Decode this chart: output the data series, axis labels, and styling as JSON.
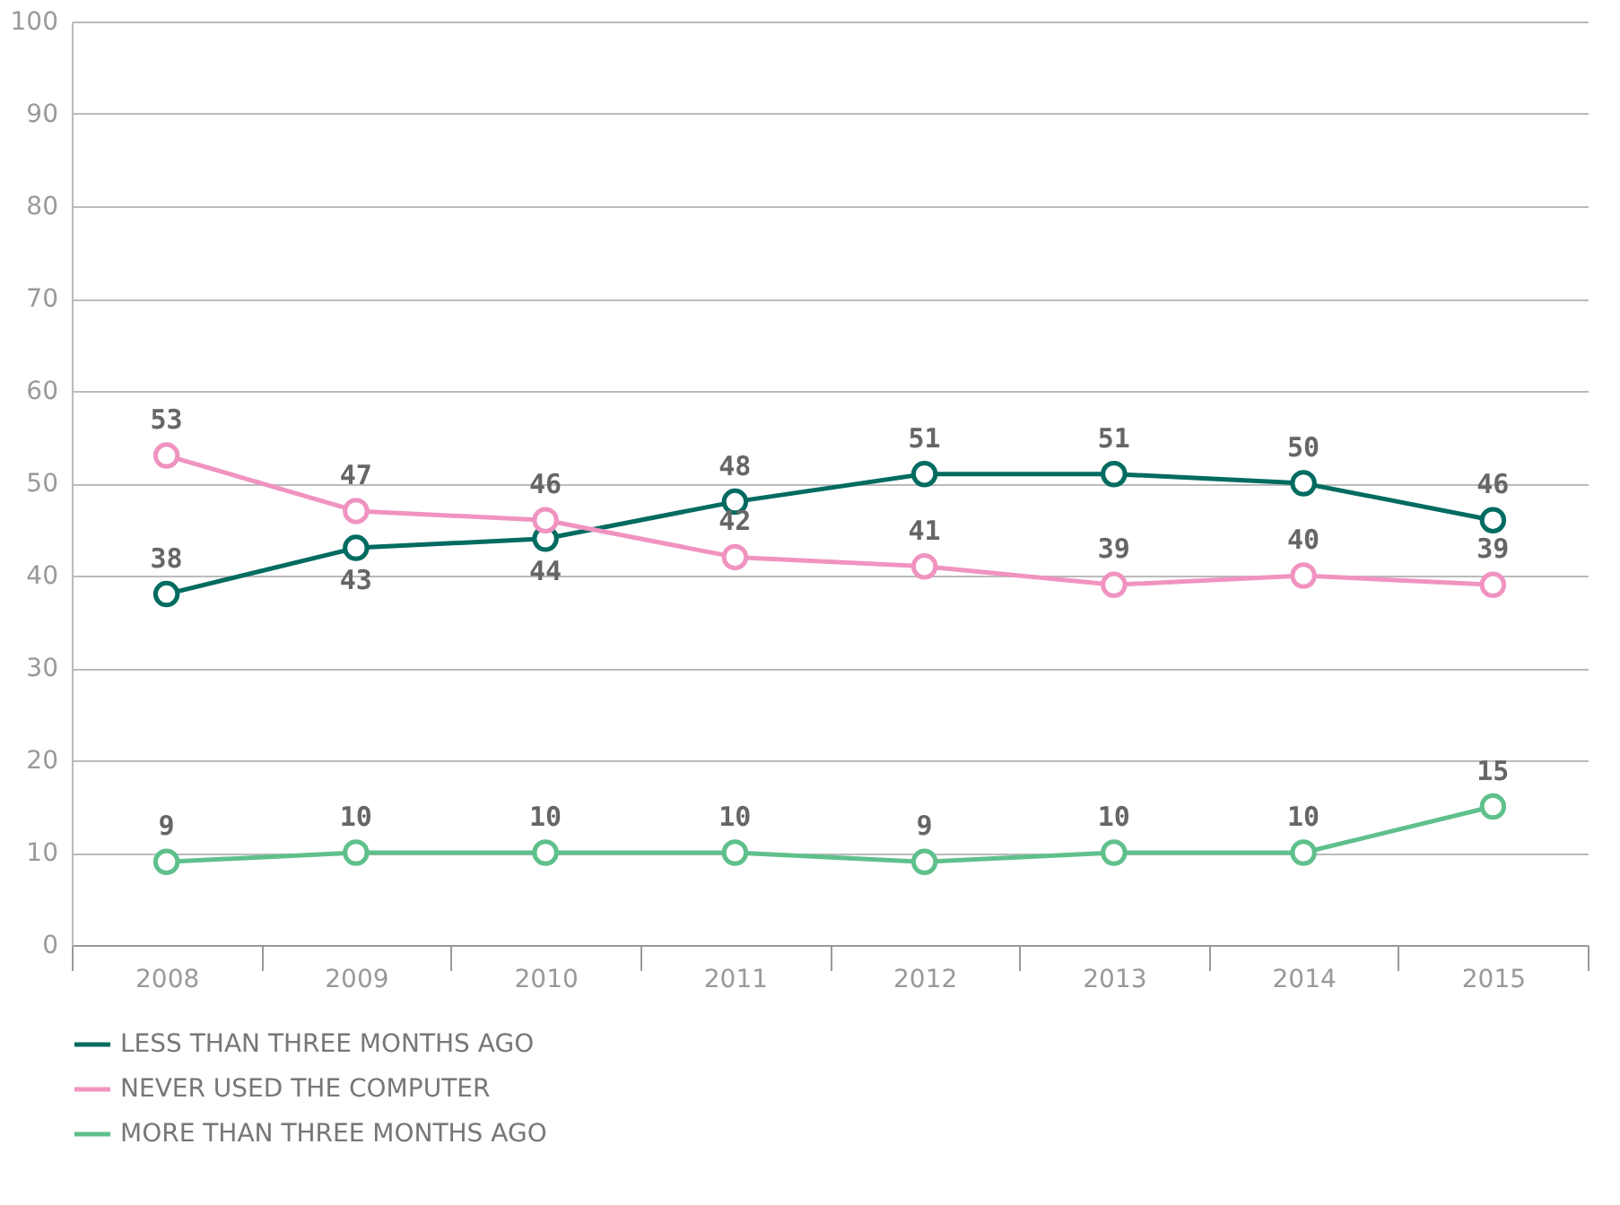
{
  "chart_data": {
    "type": "line",
    "categories": [
      "2008",
      "2009",
      "2010",
      "2011",
      "2012",
      "2013",
      "2014",
      "2015"
    ],
    "series": [
      {
        "name": "LESS THAN THREE MONTHS AGO",
        "color": "#006b61",
        "values": [
          38,
          43,
          44,
          48,
          51,
          51,
          50,
          46
        ]
      },
      {
        "name": "NEVER USED THE COMPUTER",
        "color": "#f093c0",
        "values": [
          53,
          47,
          46,
          42,
          41,
          39,
          40,
          39
        ]
      },
      {
        "name": "MORE THAN THREE MONTHS AGO",
        "color": "#5fc08c",
        "values": [
          9,
          10,
          10,
          10,
          9,
          10,
          10,
          15
        ]
      }
    ],
    "ylim": [
      0,
      100
    ],
    "yticks": [
      0,
      10,
      20,
      30,
      40,
      50,
      60,
      70,
      80,
      90,
      100
    ],
    "data_labels": true,
    "grid": "y",
    "legend": "bottom",
    "marker": "circle",
    "line_style": "solid"
  }
}
